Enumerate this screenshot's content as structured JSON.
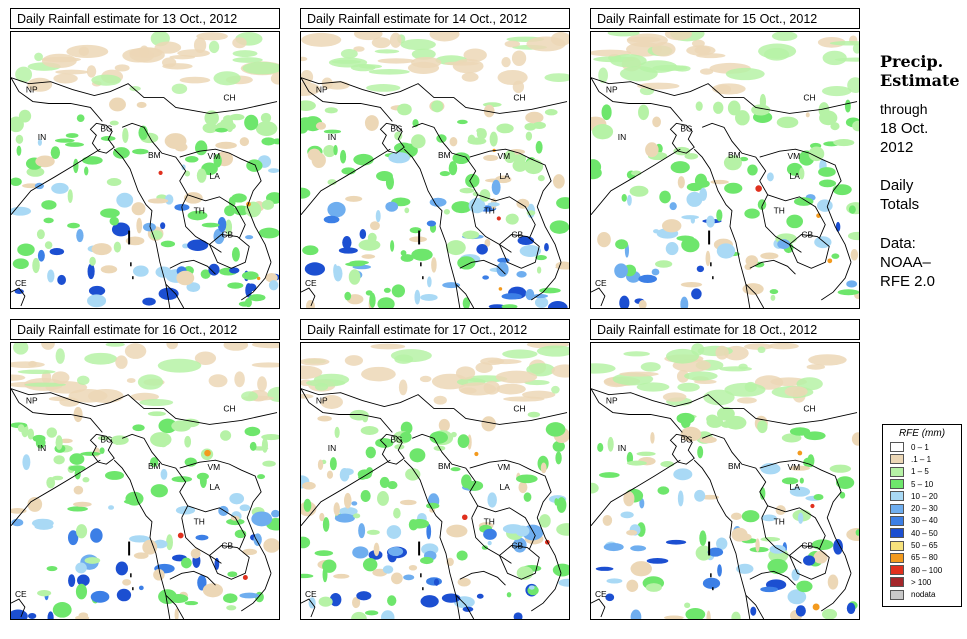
{
  "panels": [
    {
      "title": "Daily Rainfall estimate for  13 Oct., 2012",
      "seed": 13,
      "rain": 0.55
    },
    {
      "title": "Daily Rainfall estimate for  14 Oct., 2012",
      "seed": 14,
      "rain": 0.6
    },
    {
      "title": "Daily Rainfall estimate for  15 Oct., 2012",
      "seed": 15,
      "rain": 0.45
    },
    {
      "title": "Daily Rainfall estimate for  16 Oct., 2012",
      "seed": 16,
      "rain": 0.5
    },
    {
      "title": "Daily Rainfall estimate for  17 Oct., 2012",
      "seed": 17,
      "rain": 0.55
    },
    {
      "title": "Daily Rainfall estimate for  18 Oct., 2012",
      "seed": 18,
      "rain": 0.45
    }
  ],
  "country_labels": [
    "NP",
    "CH",
    "IN",
    "BG",
    "BM",
    "VM",
    "LA",
    "TH",
    "CB",
    "CE"
  ],
  "side": {
    "title_line1": "Precip.",
    "title_line2": "Estimate",
    "through": "through",
    "date_line1": "18 Oct.",
    "date_line2": "2012",
    "totals_line1": "Daily",
    "totals_line2": "Totals",
    "data_line1": "Data:",
    "data_line2": "NOAA–",
    "data_line3": "RFE 2.0"
  },
  "legend": {
    "title": "RFE (mm)",
    "items": [
      {
        "label": "0 – 1",
        "color": "#ffffff"
      },
      {
        "label": ".1 – 1",
        "color": "#ecd7b6"
      },
      {
        "label": "1 – 5",
        "color": "#b6f2a6"
      },
      {
        "label": "5 – 10",
        "color": "#6ee66c"
      },
      {
        "label": "10 – 20",
        "color": "#a9d9f5"
      },
      {
        "label": "20 – 30",
        "color": "#6faeef"
      },
      {
        "label": "30 – 40",
        "color": "#3c7fe6"
      },
      {
        "label": "40 – 50",
        "color": "#1c4fd1"
      },
      {
        "label": "50 – 65",
        "color": "#f7e27c"
      },
      {
        "label": "65 – 80",
        "color": "#f39a1e"
      },
      {
        "label": "80 – 100",
        "color": "#e0301e"
      },
      {
        "label": "> 100",
        "color": "#a4262a"
      },
      {
        "label": "nodata",
        "color": "#c8c8c8"
      }
    ]
  }
}
